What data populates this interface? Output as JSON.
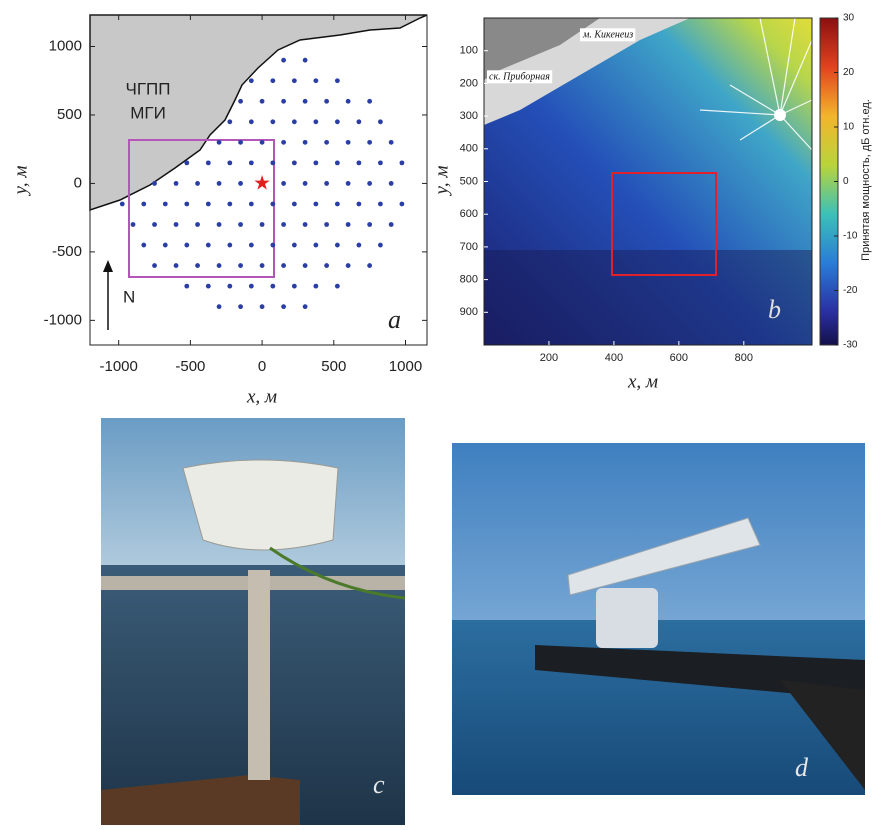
{
  "chart_data": [
    {
      "type": "scatter",
      "xlabel": "x, м",
      "ylabel": "y, м",
      "xlim": [
        -1200,
        1150
      ],
      "ylim": [
        -1180,
        1230
      ],
      "xticks": [
        -1000,
        -500,
        0,
        500,
        1000
      ],
      "yticks": [
        -1000,
        -500,
        0,
        500,
        1000
      ],
      "color": "#2a3ea6",
      "land_label": [
        "ЧГПП",
        "МГИ"
      ],
      "north_label": "N",
      "panel_label": "a",
      "rows": [
        {
          "y": 900,
          "x": [
            150,
            300
          ]
        },
        {
          "y": 750,
          "x": [
            -75,
            75,
            225,
            375,
            525
          ]
        },
        {
          "y": 600,
          "x": [
            -150,
            0,
            150,
            300,
            450,
            600,
            750
          ]
        },
        {
          "y": 450,
          "x": [
            -225,
            -75,
            75,
            225,
            375,
            525,
            675,
            825
          ]
        },
        {
          "y": 300,
          "x": [
            -300,
            -150,
            0,
            150,
            300,
            450,
            600,
            750,
            900
          ]
        },
        {
          "y": 150,
          "x": [
            -525,
            -375,
            -225,
            -75,
            75,
            225,
            375,
            525,
            675,
            825,
            975
          ]
        },
        {
          "y": 0,
          "x": [
            -750,
            -600,
            -450,
            -300,
            -150,
            0,
            150,
            300,
            450,
            600,
            750,
            900
          ]
        },
        {
          "y": -150,
          "x": [
            -975,
            -825,
            -675,
            -525,
            -375,
            -225,
            -75,
            75,
            225,
            375,
            525,
            675,
            825,
            975
          ]
        },
        {
          "y": -300,
          "x": [
            -900,
            -750,
            -600,
            -450,
            -300,
            -150,
            0,
            150,
            300,
            450,
            600,
            750,
            900
          ]
        },
        {
          "y": -450,
          "x": [
            -825,
            -675,
            -525,
            -375,
            -225,
            -75,
            75,
            225,
            375,
            525,
            675,
            825
          ]
        },
        {
          "y": -600,
          "x": [
            -750,
            -600,
            -450,
            -300,
            -150,
            0,
            150,
            300,
            450,
            600,
            750
          ]
        },
        {
          "y": -750,
          "x": [
            -525,
            -375,
            -225,
            -75,
            75,
            225,
            375,
            525
          ]
        },
        {
          "y": -900,
          "x": [
            -300,
            -150,
            0,
            150,
            300
          ]
        }
      ]
    },
    {
      "type": "heatmap",
      "xlabel": "x, м",
      "ylabel": "y, м",
      "xlim": [
        0,
        1010
      ],
      "ylim": [
        0,
        1000
      ],
      "y_inverted": true,
      "xticks": [
        200,
        400,
        600,
        800
      ],
      "yticks": [
        100,
        200,
        300,
        400,
        500,
        600,
        700,
        800,
        900
      ],
      "colorbar": {
        "label": "Принятая мощность, дБ отн.ед.",
        "lim": [
          -30,
          30
        ],
        "ticks": [
          30,
          20,
          10,
          0,
          -10,
          -20,
          -30
        ]
      },
      "annotations": [
        "м. Кикенеиз",
        "ск. Приборная"
      ],
      "panel_label": "b"
    }
  ],
  "photos": [
    {
      "label": "c"
    },
    {
      "label": "d"
    }
  ]
}
